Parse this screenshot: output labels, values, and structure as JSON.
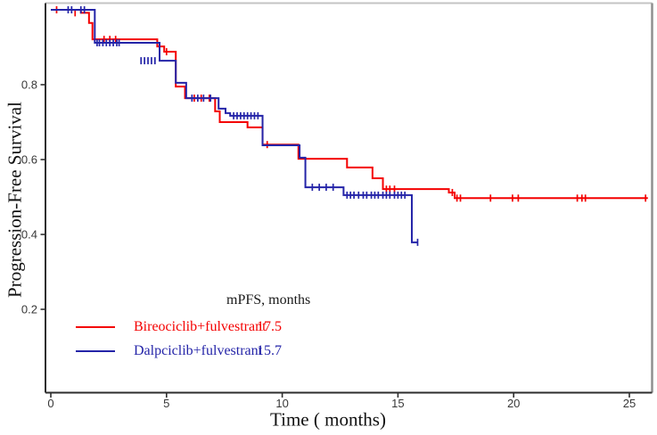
{
  "chart_data": {
    "type": "line",
    "subtype": "kaplan-meier-step",
    "title": "",
    "xlabel": "Time ( months)",
    "ylabel": "Progression-Free Survival",
    "xlim": [
      0,
      26.2
    ],
    "ylim": [
      0,
      1.0
    ],
    "xticks": [
      0,
      5,
      10,
      15,
      20,
      25
    ],
    "yticks": [
      0.2,
      0.4,
      0.6,
      0.8
    ],
    "grid": false,
    "legend": {
      "header": "mPFS, months",
      "position": "inside-lower-left"
    },
    "colors": {
      "red_series": "#f40000",
      "blue_series": "#2424a8",
      "axis_dark": "#2e2e2e",
      "border_top": "#c4c4c4",
      "border_right": "#8f8f8f",
      "text": "#1a1a1a"
    },
    "series": [
      {
        "name": "Bireociclib+fulvestrant",
        "median_pfs_months": "17.5",
        "color": "#f40000",
        "end_t": 25.8,
        "steps": [
          [
            0,
            1.0
          ],
          [
            1.3,
            0.992
          ],
          [
            1.65,
            0.965
          ],
          [
            1.8,
            0.921
          ],
          [
            4.6,
            0.902
          ],
          [
            4.9,
            0.888
          ],
          [
            5.4,
            0.795
          ],
          [
            5.8,
            0.764
          ],
          [
            7.1,
            0.729
          ],
          [
            7.3,
            0.7
          ],
          [
            8.5,
            0.686
          ],
          [
            9.15,
            0.64
          ],
          [
            10.7,
            0.602
          ],
          [
            12.8,
            0.579
          ],
          [
            13.9,
            0.55
          ],
          [
            14.35,
            0.521
          ],
          [
            17.2,
            0.512
          ],
          [
            17.45,
            0.497
          ]
        ],
        "censors": [
          [
            0.25,
            1.0
          ],
          [
            1.05,
            0.992
          ],
          [
            2.3,
            0.921
          ],
          [
            2.55,
            0.921
          ],
          [
            2.8,
            0.921
          ],
          [
            5.0,
            0.888
          ],
          [
            6.2,
            0.764
          ],
          [
            6.5,
            0.764
          ],
          [
            6.85,
            0.764
          ],
          [
            9.35,
            0.64
          ],
          [
            14.5,
            0.521
          ],
          [
            14.65,
            0.521
          ],
          [
            14.85,
            0.521
          ],
          [
            17.35,
            0.512
          ],
          [
            17.55,
            0.497
          ],
          [
            17.7,
            0.497
          ],
          [
            19.0,
            0.497
          ],
          [
            19.95,
            0.497
          ],
          [
            20.2,
            0.497
          ],
          [
            22.75,
            0.497
          ],
          [
            22.95,
            0.497
          ],
          [
            23.1,
            0.497
          ],
          [
            25.7,
            0.497
          ]
        ]
      },
      {
        "name": "Dalpciclib+fulvestrant",
        "median_pfs_months": "15.7",
        "color": "#2424a8",
        "end_t": 15.85,
        "steps": [
          [
            0,
            1.0
          ],
          [
            1.9,
            0.912
          ],
          [
            4.7,
            0.864
          ],
          [
            5.4,
            0.805
          ],
          [
            5.85,
            0.764
          ],
          [
            7.25,
            0.736
          ],
          [
            7.55,
            0.724
          ],
          [
            7.75,
            0.717
          ],
          [
            9.15,
            0.638
          ],
          [
            10.75,
            0.605
          ],
          [
            11.0,
            0.526
          ],
          [
            12.65,
            0.505
          ],
          [
            15.6,
            0.379
          ]
        ],
        "censors": [
          [
            0.75,
            1.0
          ],
          [
            0.9,
            1.0
          ],
          [
            1.3,
            1.0
          ],
          [
            1.45,
            1.0
          ],
          [
            2.0,
            0.912
          ],
          [
            2.1,
            0.912
          ],
          [
            2.25,
            0.912
          ],
          [
            2.4,
            0.912
          ],
          [
            2.55,
            0.912
          ],
          [
            2.7,
            0.912
          ],
          [
            2.85,
            0.912
          ],
          [
            2.95,
            0.912
          ],
          [
            3.9,
            0.864
          ],
          [
            4.05,
            0.864
          ],
          [
            4.2,
            0.864
          ],
          [
            4.35,
            0.864
          ],
          [
            4.5,
            0.864
          ],
          [
            6.1,
            0.764
          ],
          [
            6.35,
            0.764
          ],
          [
            6.6,
            0.764
          ],
          [
            6.9,
            0.764
          ],
          [
            7.9,
            0.717
          ],
          [
            8.05,
            0.717
          ],
          [
            8.2,
            0.717
          ],
          [
            8.35,
            0.717
          ],
          [
            8.5,
            0.717
          ],
          [
            8.65,
            0.717
          ],
          [
            8.8,
            0.717
          ],
          [
            8.95,
            0.717
          ],
          [
            11.3,
            0.526
          ],
          [
            11.6,
            0.526
          ],
          [
            11.9,
            0.526
          ],
          [
            12.2,
            0.526
          ],
          [
            12.8,
            0.505
          ],
          [
            12.95,
            0.505
          ],
          [
            13.1,
            0.505
          ],
          [
            13.3,
            0.505
          ],
          [
            13.5,
            0.505
          ],
          [
            13.65,
            0.505
          ],
          [
            13.85,
            0.505
          ],
          [
            14.0,
            0.505
          ],
          [
            14.15,
            0.505
          ],
          [
            14.35,
            0.505
          ],
          [
            14.5,
            0.505
          ],
          [
            14.65,
            0.505
          ],
          [
            14.85,
            0.505
          ],
          [
            15.0,
            0.505
          ],
          [
            15.15,
            0.505
          ],
          [
            15.3,
            0.505
          ],
          [
            15.85,
            0.379
          ]
        ]
      }
    ]
  }
}
